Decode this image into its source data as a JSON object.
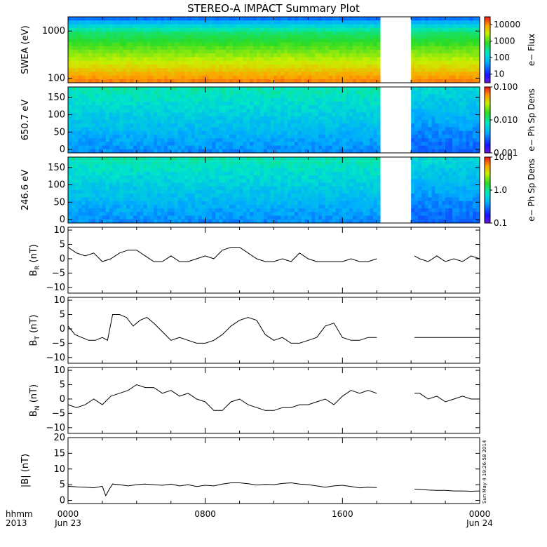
{
  "title": "STEREO-A IMPACT Summary Plot",
  "stamp": "Sun May  4 19:26:58 2014",
  "time_axis": {
    "row_label": "hhmm",
    "year": "2013",
    "ticks": [
      {
        "hour": 0,
        "label": "0000",
        "date": "Jun 23"
      },
      {
        "hour": 8,
        "label": "0800",
        "date": ""
      },
      {
        "hour": 16,
        "label": "1600",
        "date": ""
      },
      {
        "hour": 24,
        "label": "0000",
        "date": "Jun 24"
      }
    ]
  },
  "chart_data": [
    {
      "type": "heatmap",
      "id": "swea",
      "ylabel": "SWEA (eV)",
      "yscale": "log",
      "ylim": [
        80,
        2000
      ],
      "yticks": [
        {
          "v": 1000,
          "label": "1000"
        },
        {
          "v": 100,
          "label": "100"
        }
      ],
      "colorbar": {
        "label": "e− Flux",
        "scale": "log",
        "range": [
          3,
          30000
        ],
        "ticks": [
          {
            "v": 10000,
            "label": "10000"
          },
          {
            "v": 1000,
            "label": "1000"
          },
          {
            "v": 100,
            "label": "100"
          },
          {
            "v": 10,
            "label": "10"
          }
        ]
      },
      "gaps_hours": [
        [
          18.15,
          20.1
        ]
      ]
    },
    {
      "type": "heatmap",
      "id": "pad650",
      "ylabel": "650.7 eV",
      "ylim": [
        -10,
        180
      ],
      "yticks": [
        {
          "v": 0,
          "label": "0"
        },
        {
          "v": 50,
          "label": "50"
        },
        {
          "v": 100,
          "label": "100"
        },
        {
          "v": 150,
          "label": "150"
        }
      ],
      "colorbar": {
        "label": "e− Ph Sp Dens",
        "scale": "log",
        "range": [
          0.001,
          0.1
        ],
        "ticks": [
          {
            "v": 0.1,
            "label": "0.100"
          },
          {
            "v": 0.01,
            "label": "0.010"
          },
          {
            "v": 0.001,
            "label": "0.001"
          }
        ]
      },
      "gaps_hours": [
        [
          18.15,
          20.1
        ]
      ]
    },
    {
      "type": "heatmap",
      "id": "pad246",
      "ylabel": "246.6 eV",
      "ylim": [
        -10,
        180
      ],
      "yticks": [
        {
          "v": 0,
          "label": "0"
        },
        {
          "v": 50,
          "label": "50"
        },
        {
          "v": 100,
          "label": "100"
        },
        {
          "v": 150,
          "label": "150"
        }
      ],
      "colorbar": {
        "label": "e− Ph Sp Dens",
        "scale": "log",
        "range": [
          0.1,
          10
        ],
        "ticks": [
          {
            "v": 10,
            "label": "10.0"
          },
          {
            "v": 1,
            "label": "1.0"
          },
          {
            "v": 0.1,
            "label": "0.1"
          }
        ]
      },
      "gaps_hours": [
        [
          18.15,
          20.1
        ]
      ]
    },
    {
      "type": "line",
      "id": "br",
      "ylabel": "B",
      "ysub": "R",
      "yunit": "(nT)",
      "ylim": [
        -12,
        11
      ],
      "yticks": [
        {
          "v": 10,
          "label": "10"
        },
        {
          "v": 5,
          "label": "5"
        },
        {
          "v": 0,
          "label": "0"
        },
        {
          "v": -5,
          "label": "−5"
        },
        {
          "v": -10,
          "label": "−10"
        }
      ],
      "x_hours": [
        0,
        0.5,
        1,
        1.5,
        2,
        2.5,
        3,
        3.5,
        4,
        4.5,
        5,
        5.5,
        6,
        6.5,
        7,
        7.5,
        8,
        8.5,
        9,
        9.5,
        10,
        10.5,
        11,
        11.5,
        12,
        12.5,
        13,
        13.5,
        14,
        14.5,
        15,
        15.5,
        16,
        16.5,
        17,
        17.5,
        18,
        20.2,
        20.5,
        21,
        21.5,
        22,
        22.5,
        23,
        23.5,
        24
      ],
      "values": [
        4,
        2,
        1,
        2,
        -1,
        0,
        2,
        3,
        3,
        1,
        -1,
        -1,
        1,
        -1,
        -1,
        0,
        1,
        0,
        3,
        4,
        4,
        2,
        0,
        -1,
        -1,
        0,
        -1,
        2,
        0,
        -1,
        -1,
        -1,
        -1,
        0,
        -1,
        -1,
        0,
        1,
        0,
        -1,
        1,
        -1,
        0,
        -1,
        1,
        0
      ]
    },
    {
      "type": "line",
      "id": "bt",
      "ylabel": "B",
      "ysub": "T",
      "yunit": "(nT)",
      "ylim": [
        -12,
        11
      ],
      "yticks": [
        {
          "v": 10,
          "label": "10"
        },
        {
          "v": 5,
          "label": "5"
        },
        {
          "v": 0,
          "label": "0"
        },
        {
          "v": -5,
          "label": "−5"
        },
        {
          "v": -10,
          "label": "−10"
        }
      ],
      "x_hours": [
        0,
        0.4,
        0.8,
        1.2,
        1.6,
        2,
        2.3,
        2.6,
        3,
        3.4,
        3.8,
        4.2,
        4.6,
        5,
        5.5,
        6,
        6.5,
        7,
        7.5,
        8,
        8.5,
        9,
        9.5,
        10,
        10.5,
        11,
        11.5,
        12,
        12.5,
        13,
        13.5,
        14,
        14.5,
        15,
        15.5,
        16,
        16.5,
        17,
        17.5,
        18,
        20.2,
        20.5,
        21,
        21.5,
        22,
        22.5,
        23,
        23.5,
        24
      ],
      "values": [
        1,
        -2,
        -3,
        -4,
        -4,
        -3,
        -4,
        5,
        5,
        4,
        1,
        3,
        4,
        2,
        -1,
        -4,
        -3,
        -4,
        -5,
        -5,
        -4,
        -2,
        1,
        3,
        4,
        3,
        -2,
        -4,
        -3,
        -5,
        -5,
        -4,
        -3,
        1,
        2,
        -3,
        -4,
        -4,
        -3,
        -3,
        -3,
        -3,
        -3,
        -3,
        -3,
        -3,
        -3,
        -3,
        -3
      ]
    },
    {
      "type": "line",
      "id": "bn",
      "ylabel": "B",
      "ysub": "N",
      "yunit": "(nT)",
      "ylim": [
        -12,
        11
      ],
      "yticks": [
        {
          "v": 10,
          "label": "10"
        },
        {
          "v": 5,
          "label": "5"
        },
        {
          "v": 0,
          "label": "0"
        },
        {
          "v": -5,
          "label": "−5"
        },
        {
          "v": -10,
          "label": "−10"
        }
      ],
      "x_hours": [
        0,
        0.5,
        1,
        1.5,
        2,
        2.5,
        3,
        3.5,
        4,
        4.5,
        5,
        5.5,
        6,
        6.5,
        7,
        7.5,
        8,
        8.5,
        9,
        9.5,
        10,
        10.5,
        11,
        11.5,
        12,
        12.5,
        13,
        13.5,
        14,
        14.5,
        15,
        15.5,
        16,
        16.5,
        17,
        17.5,
        18,
        20.2,
        20.5,
        21,
        21.5,
        22,
        22.5,
        23,
        23.5,
        24
      ],
      "values": [
        -2,
        -3,
        -2,
        0,
        -2,
        1,
        2,
        3,
        5,
        4,
        4,
        2,
        3,
        1,
        2,
        0,
        -1,
        -4,
        -4,
        -1,
        0,
        -2,
        -3,
        -4,
        -4,
        -3,
        -3,
        -2,
        -2,
        -1,
        0,
        -2,
        1,
        3,
        2,
        3,
        2,
        2,
        2,
        0,
        1,
        -1,
        0,
        1,
        0,
        0
      ]
    },
    {
      "type": "line",
      "id": "bmag",
      "ylabel": "|B|",
      "yunit": "(nT)",
      "ylim": [
        -1,
        20
      ],
      "yticks": [
        {
          "v": 20,
          "label": "20"
        },
        {
          "v": 15,
          "label": "15"
        },
        {
          "v": 10,
          "label": "10"
        },
        {
          "v": 5,
          "label": "5"
        },
        {
          "v": 0,
          "label": "0"
        }
      ],
      "x_hours": [
        0,
        0.5,
        1,
        1.5,
        2,
        2.2,
        2.4,
        2.6,
        3,
        3.5,
        4,
        4.5,
        5,
        5.5,
        6,
        6.5,
        7,
        7.5,
        8,
        8.5,
        9,
        9.5,
        10,
        10.5,
        11,
        11.5,
        12,
        12.5,
        13,
        13.5,
        14,
        14.5,
        15,
        15.5,
        16,
        16.5,
        17,
        17.5,
        18,
        20.2,
        20.5,
        21,
        21.5,
        22,
        22.5,
        23,
        23.5,
        24
      ],
      "values": [
        4.5,
        4.3,
        4.2,
        4.0,
        4.5,
        1.5,
        3.5,
        5.2,
        5.0,
        4.6,
        5.0,
        5.2,
        5.0,
        4.8,
        5.2,
        4.6,
        5.0,
        4.4,
        4.8,
        4.6,
        5.2,
        5.6,
        5.6,
        5.3,
        4.9,
        5.1,
        5.0,
        5.4,
        5.6,
        5.2,
        5.0,
        4.6,
        4.2,
        4.6,
        4.8,
        4.4,
        4.0,
        4.2,
        4.1,
        3.6,
        3.5,
        3.3,
        3.2,
        3.2,
        3.0,
        3.0,
        2.9,
        3.0
      ]
    }
  ]
}
